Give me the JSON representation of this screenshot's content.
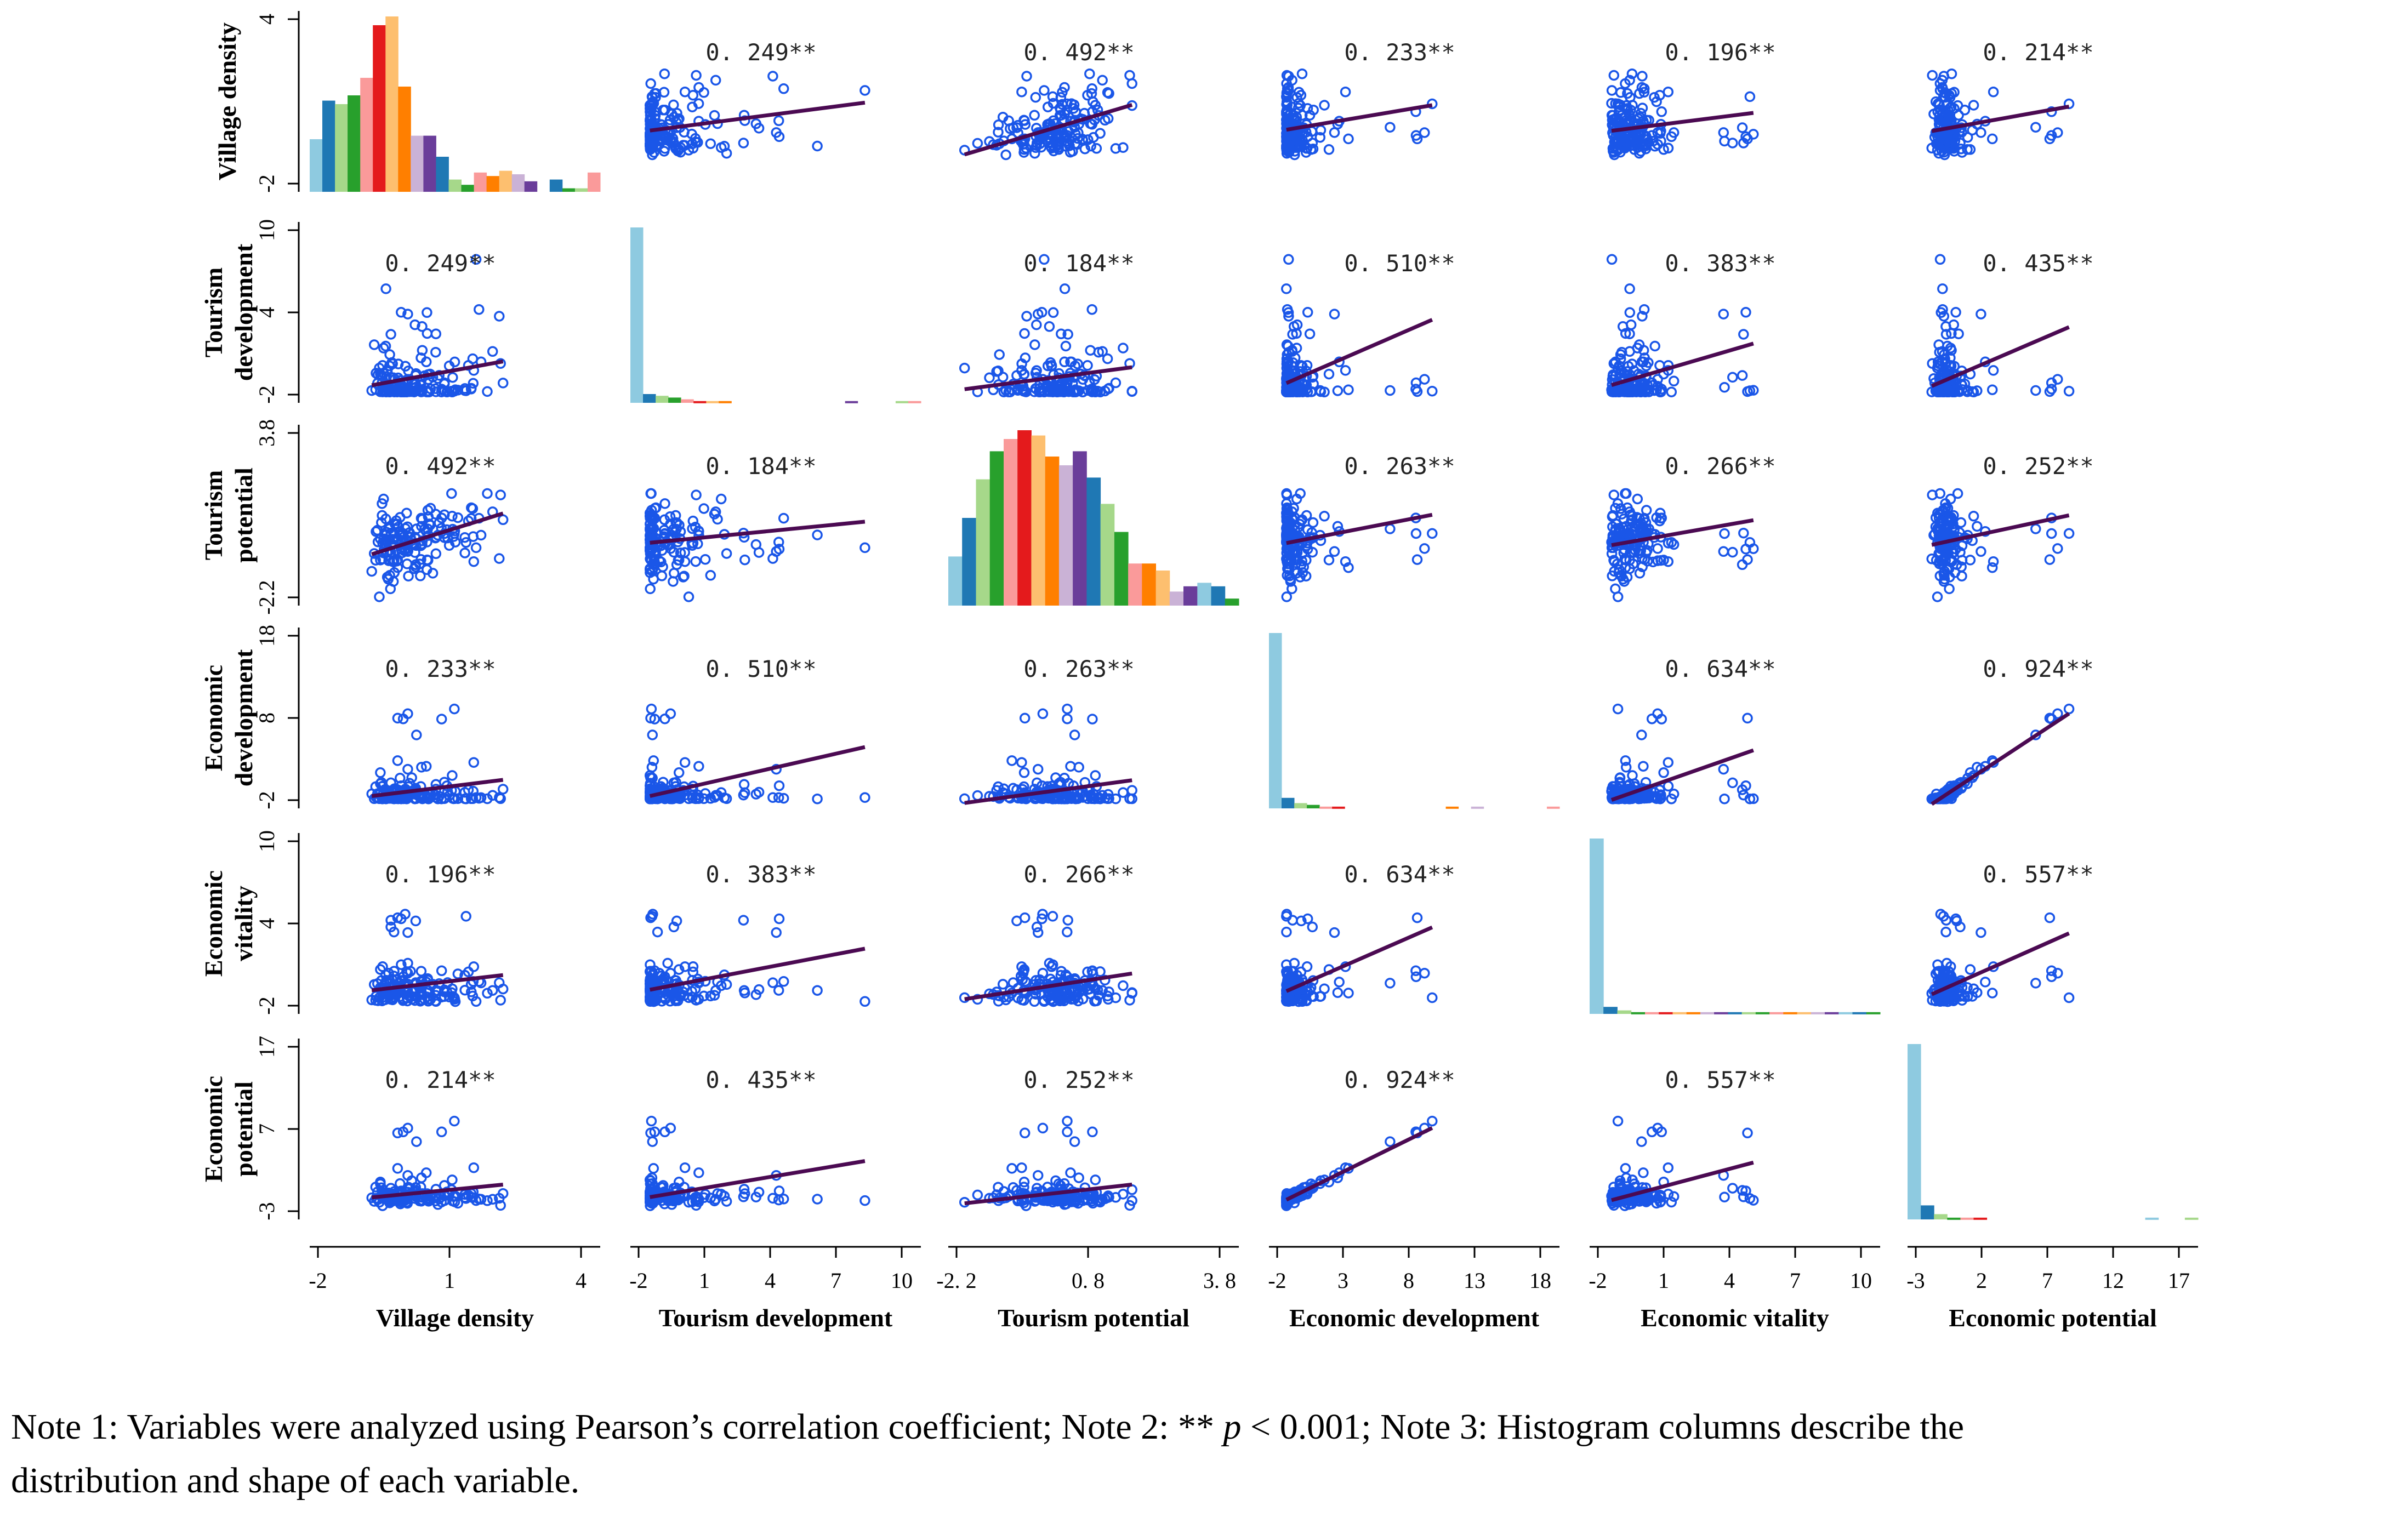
{
  "figure": {
    "variables": [
      "Village density",
      "Tourism development",
      "Tourism potential",
      "Economic development",
      "Economic vitality",
      "Economic potential"
    ],
    "row_labels": [
      [
        "Village density"
      ],
      [
        "Tourism",
        "development"
      ],
      [
        "Tourism",
        "potential"
      ],
      [
        "Economic",
        "development"
      ],
      [
        "Economic",
        "vitality"
      ],
      [
        "Economic",
        "potential"
      ]
    ],
    "col_labels": [
      "Village density",
      "Tourism development",
      "Tourism potential",
      "Economic development",
      "Economic  vitality",
      "Economic  potential"
    ],
    "x_tick_labels": [
      [
        "-2",
        "1",
        "4"
      ],
      [
        "-2",
        "1",
        "4",
        "7",
        "10"
      ],
      [
        "-2. 2",
        "0. 8",
        "3. 8"
      ],
      [
        "-2",
        "3",
        "8",
        "13",
        "18"
      ],
      [
        "-2",
        "1",
        "4",
        "7",
        "10"
      ],
      [
        "-3",
        "2",
        "7",
        "12",
        "17"
      ]
    ],
    "y_tick_labels": [
      [
        "4",
        "-2"
      ],
      [
        "10",
        "4",
        "-2"
      ],
      [
        "3.8",
        "-2.2"
      ],
      [
        "18",
        "8",
        "-2"
      ],
      [
        "10",
        "4",
        "-2"
      ],
      [
        "17",
        "7",
        "-3"
      ]
    ]
  },
  "chart_data": {
    "type": "scatter",
    "title": "",
    "variables": [
      "Village density",
      "Tourism development",
      "Tourism potential",
      "Economic development",
      "Economic vitality",
      "Economic potential"
    ],
    "x_ranges": [
      [
        -2,
        4
      ],
      [
        -2,
        10
      ],
      [
        -2.2,
        3.8
      ],
      [
        -2,
        18
      ],
      [
        -2,
        10
      ],
      [
        -3,
        17
      ]
    ],
    "y_ranges": [
      [
        -2,
        4
      ],
      [
        -2,
        10
      ],
      [
        -2.2,
        3.8
      ],
      [
        -2,
        18
      ],
      [
        -2,
        10
      ],
      [
        -3,
        17
      ]
    ],
    "correlation_labels": [
      [
        "",
        "0. 249**",
        "0. 492**",
        "0. 233**",
        "0. 196**",
        "0. 214**"
      ],
      [
        "0. 249**",
        "",
        "0. 184**",
        "0. 510**",
        "0. 383**",
        "0. 435**"
      ],
      [
        "0. 492**",
        "0. 184**",
        "",
        "0. 263**",
        "0. 266**",
        "0. 252**"
      ],
      [
        "0. 233**",
        "0. 510**",
        "0. 263**",
        "",
        "0. 634**",
        "0. 924**"
      ],
      [
        "0. 196**",
        "0. 383**",
        "0. 266**",
        "0. 634**",
        "",
        "0. 557**"
      ],
      [
        "0. 214**",
        "0. 435**",
        "0. 252**",
        "0. 924**",
        "0. 557**",
        ""
      ]
    ],
    "correlations": [
      [
        1,
        0.249,
        0.492,
        0.233,
        0.196,
        0.214
      ],
      [
        0.249,
        1,
        0.184,
        0.51,
        0.383,
        0.435
      ],
      [
        0.492,
        0.184,
        1,
        0.263,
        0.266,
        0.252
      ],
      [
        0.233,
        0.51,
        0.263,
        1,
        0.634,
        0.924
      ],
      [
        0.196,
        0.383,
        0.266,
        0.634,
        1,
        0.557
      ],
      [
        0.214,
        0.435,
        0.252,
        0.924,
        0.557,
        1
      ]
    ],
    "histograms": [
      [
        0.3,
        0.52,
        0.5,
        0.55,
        0.65,
        0.95,
        1.0,
        0.6,
        0.32,
        0.32,
        0.2,
        0.07,
        0.04,
        0.11,
        0.09,
        0.12,
        0.1,
        0.06,
        0.0,
        0.07,
        0.02,
        0.02,
        0.11
      ],
      [
        1.0,
        0.05,
        0.04,
        0.03,
        0.02,
        0.01,
        0.01,
        0.01,
        0.0,
        0.0,
        0.0,
        0.0,
        0.0,
        0.0,
        0.0,
        0.0,
        0.0,
        0.01,
        0.0,
        0.0,
        0.0,
        0.01,
        0.01
      ],
      [
        0.28,
        0.5,
        0.72,
        0.88,
        0.95,
        1.0,
        0.97,
        0.85,
        0.8,
        0.88,
        0.73,
        0.58,
        0.42,
        0.24,
        0.24,
        0.2,
        0.08,
        0.11,
        0.13,
        0.11,
        0.04
      ],
      [
        1.0,
        0.06,
        0.03,
        0.02,
        0.01,
        0.01,
        0.0,
        0.0,
        0.0,
        0.0,
        0.0,
        0.0,
        0.0,
        0.0,
        0.01,
        0.0,
        0.01,
        0.0,
        0.0,
        0.0,
        0.0,
        0.0,
        0.01
      ],
      [
        1.0,
        0.04,
        0.02,
        0.01,
        0.01,
        0.01,
        0.01,
        0.01,
        0.01,
        0.01,
        0.01,
        0.01,
        0.01,
        0.01,
        0.01,
        0.01,
        0.01,
        0.01,
        0.01,
        0.01,
        0.01
      ],
      [
        1.0,
        0.08,
        0.03,
        0.01,
        0.01,
        0.01,
        0.0,
        0.0,
        0.0,
        0.0,
        0.0,
        0.0,
        0.0,
        0.0,
        0.0,
        0.0,
        0.0,
        0.0,
        0.01,
        0.0,
        0.0,
        0.01
      ]
    ],
    "histogram_colors": [
      "#8ecae0",
      "#1f78b4",
      "#a6d88a",
      "#28a02c",
      "#fa9a9a",
      "#e41a1c",
      "#fdbf6f",
      "#ff7f00",
      "#cab2d6",
      "#6a3d9a",
      "#1f78b4",
      "#a6d88a",
      "#28a02c",
      "#fa9a9a",
      "#ff7f00",
      "#fdbf6f",
      "#cab2d6",
      "#6a3d9a",
      "#8ecae0",
      "#1f78b4",
      "#28a02c",
      "#a6d88a",
      "#fa9a9a"
    ],
    "point_color": "#1a56e8",
    "line_color": "#4b0a52",
    "grid": false,
    "legend": "none"
  },
  "note": {
    "line1_before": "Note 1: Variables were analyzed using Pearson’s correlation coefficient; Note 2: ** ",
    "italic_p": "p",
    "line1_after": " < 0.001; Note 3: Histogram columns describe the",
    "line2": "distribution and shape of each variable."
  }
}
